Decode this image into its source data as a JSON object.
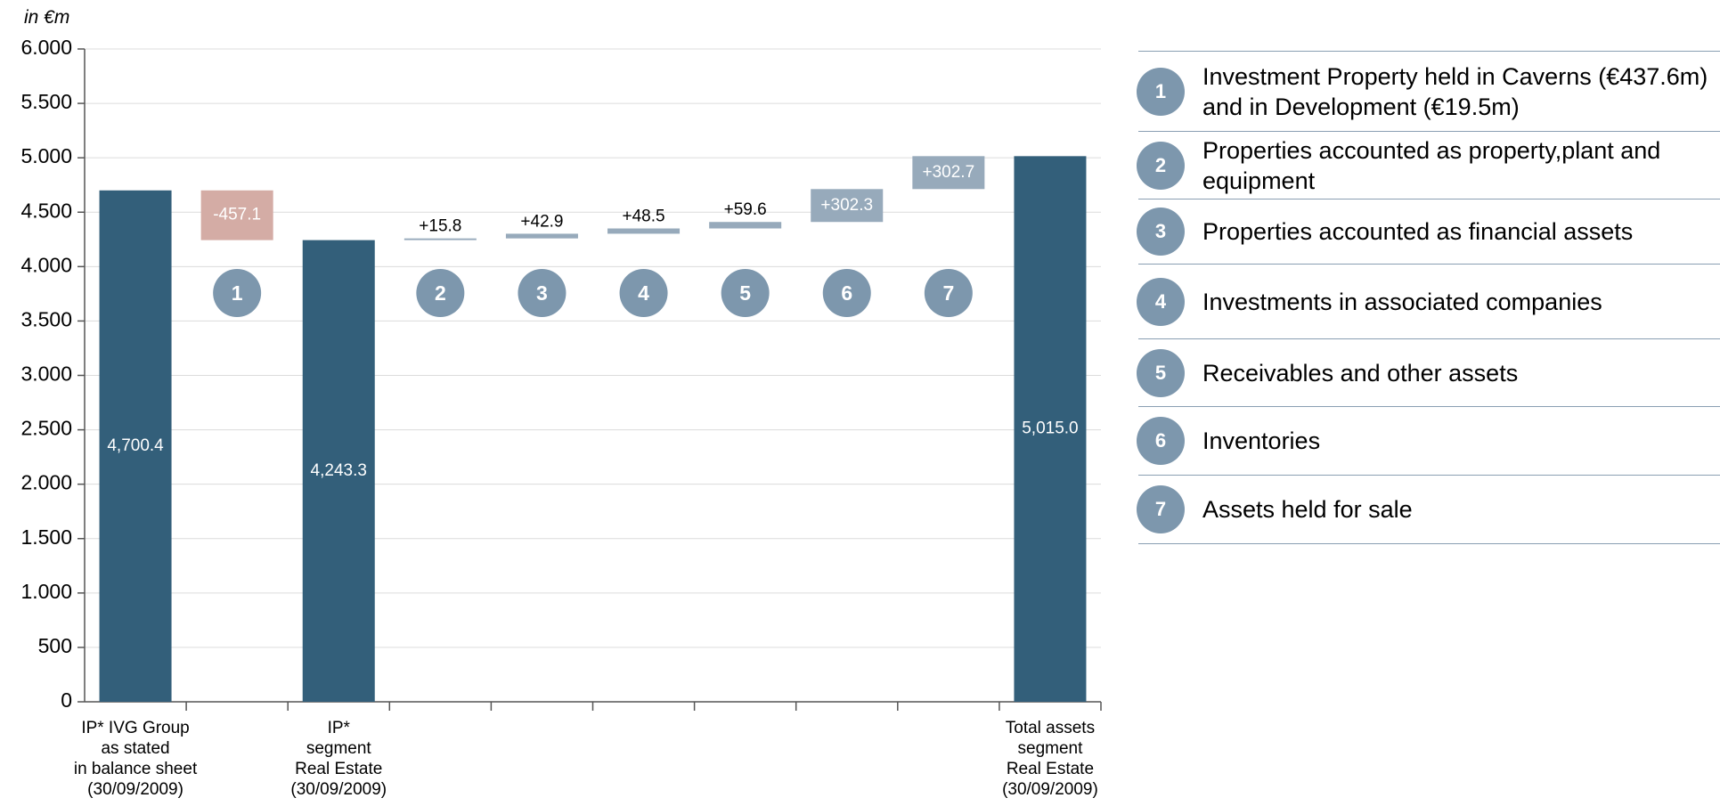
{
  "chart_data": {
    "type": "waterfall",
    "unit_label": "in €m",
    "categories": [
      "IP* IVG Group\nas stated\nin balance sheet\n(30/09/2009)",
      null,
      "IP*\nsegment\nReal Estate\n(30/09/2009)",
      null,
      null,
      null,
      null,
      null,
      null,
      "Total assets\nsegment\nReal Estate\n(30/09/2009)"
    ],
    "values": [
      4700.4,
      -457.1,
      4243.3,
      15.8,
      42.9,
      48.5,
      59.6,
      302.3,
      302.7,
      5015.0
    ],
    "value_labels": [
      "4,700.4",
      "-457.1",
      "4,243.3",
      "+15.8",
      "+42.9",
      "+48.5",
      "+59.6",
      "+302.3",
      "+302.7",
      "5,015.0"
    ],
    "is_total": [
      true,
      false,
      true,
      false,
      false,
      false,
      false,
      false,
      false,
      true
    ],
    "colors": {
      "total": "#335f7a",
      "decrease": "#d4aca5",
      "increase": "#97aabb"
    },
    "ylim": [
      0,
      6000
    ],
    "yticks": [
      0,
      500,
      {
        "value": 1000,
        "label": "1.000"
      },
      {
        "value": 1500,
        "label": "1.500"
      },
      {
        "value": 2000,
        "label": "2.000"
      },
      {
        "value": 2500,
        "label": "2.500"
      },
      {
        "value": 3000,
        "label": "3.000"
      },
      {
        "value": 3500,
        "label": "3.500"
      },
      {
        "value": 4000,
        "label": "4.000"
      },
      {
        "value": 4500,
        "label": "4.500"
      },
      {
        "value": 5000,
        "label": "5.000"
      },
      {
        "value": 5500,
        "label": "5.500"
      },
      {
        "value": 6000,
        "label": "6.000"
      }
    ],
    "grid": true
  },
  "legend_items": [
    {
      "number": "1",
      "text": "Investment Property held in Caverns (€437.6m) and in Development (€19.5m)"
    },
    {
      "number": "2",
      "text": "Properties accounted as property,plant and equipment"
    },
    {
      "number": "3",
      "text": "Properties accounted as financial assets"
    },
    {
      "number": "4",
      "text": "Investments in associated companies"
    },
    {
      "number": "5",
      "text": "Receivables and other assets"
    },
    {
      "number": "6",
      "text": "Inventories"
    },
    {
      "number": "7",
      "text": "Assets held for sale"
    }
  ]
}
